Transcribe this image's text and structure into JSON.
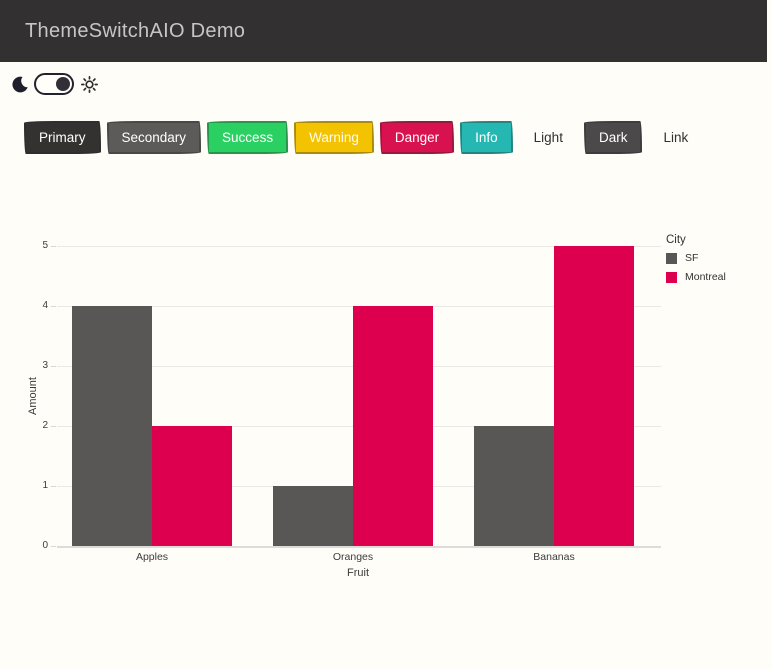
{
  "header": {
    "title": "ThemeSwitchAIO Demo"
  },
  "theme_switch": {
    "checked": true
  },
  "colors": {
    "header_bg": "#323030",
    "page_bg": "#fffdf8",
    "accent_gray": "#595755",
    "accent_crimson": "#dd004e"
  },
  "toolbar": {
    "buttons": [
      {
        "label": "Primary",
        "bg": "#343231",
        "fg": "#ffffff",
        "variant": "solid"
      },
      {
        "label": "Secondary",
        "bg": "#5d5b5a",
        "fg": "#ffffff",
        "variant": "solid"
      },
      {
        "label": "Success",
        "bg": "#2bd063",
        "fg": "#ffffff",
        "variant": "solid"
      },
      {
        "label": "Warning",
        "bg": "#f3c301",
        "fg": "#fffdf0",
        "variant": "solid"
      },
      {
        "label": "Danger",
        "bg": "#d8114f",
        "fg": "#ffffff",
        "variant": "solid"
      },
      {
        "label": "Info",
        "bg": "#25b8b2",
        "fg": "#ffffff",
        "variant": "solid"
      },
      {
        "label": "Light",
        "bg": "#fffdf8",
        "fg": "#323030",
        "variant": "light"
      },
      {
        "label": "Dark",
        "bg": "#4b4949",
        "fg": "#ffffff",
        "variant": "solid"
      },
      {
        "label": "Link",
        "bg": "transparent",
        "fg": "#323030",
        "variant": "link"
      }
    ]
  },
  "chart_data": {
    "type": "bar",
    "categories": [
      "Apples",
      "Oranges",
      "Bananas"
    ],
    "series": [
      {
        "name": "SF",
        "color": "#595755",
        "values": [
          4,
          1,
          2
        ]
      },
      {
        "name": "Montreal",
        "color": "#dd004e",
        "values": [
          2,
          4,
          5
        ]
      }
    ],
    "title": "",
    "xlabel": "Fruit",
    "ylabel": "Amount",
    "ylim": [
      0,
      5
    ],
    "yticks": [
      0,
      1,
      2,
      3,
      4,
      5
    ],
    "legend_title": "City",
    "legend_position": "right",
    "grid": true,
    "barmode": "group"
  }
}
